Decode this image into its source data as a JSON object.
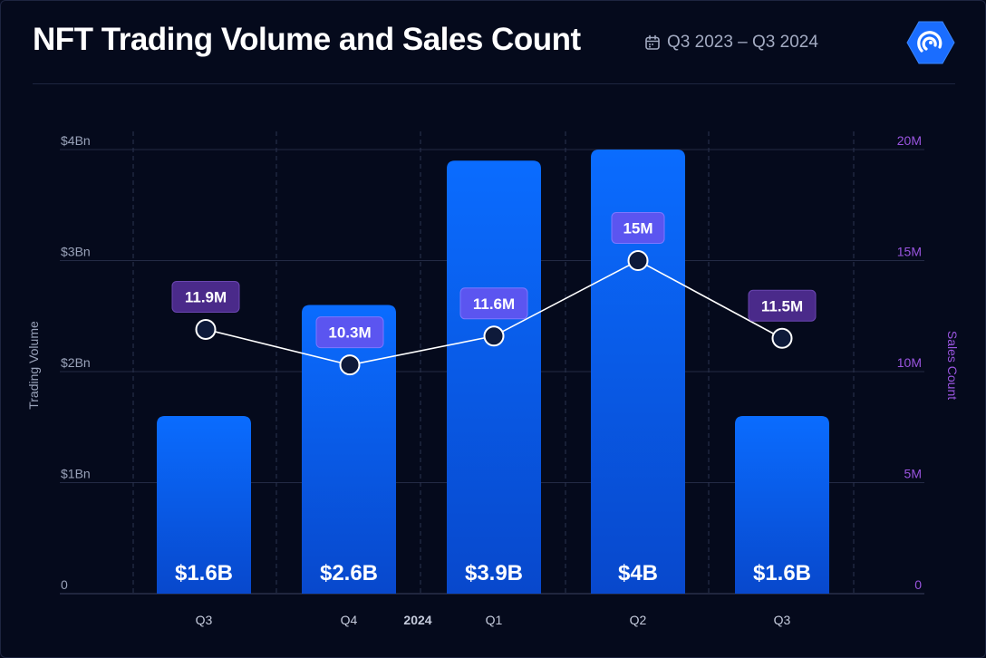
{
  "header": {
    "title": "NFT Trading Volume and Sales Count",
    "date_range": "Q3 2023 – Q3 2024"
  },
  "chart_data": {
    "type": "bar",
    "title": "NFT Trading Volume and Sales Count",
    "categories": [
      "Q3",
      "Q4",
      "Q1",
      "Q2",
      "Q3"
    ],
    "year_marker": {
      "label": "2024",
      "before_index": 2
    },
    "series": [
      {
        "name": "Trading Volume",
        "type": "bar",
        "axis": "left",
        "values": [
          1.6,
          2.6,
          3.9,
          4.0,
          1.6
        ],
        "labels": [
          "$1.6B",
          "$2.6B",
          "$3.9B",
          "$4B",
          "$1.6B"
        ]
      },
      {
        "name": "Sales Count",
        "type": "line",
        "axis": "right",
        "values": [
          11.9,
          10.3,
          11.6,
          15.0,
          11.5
        ],
        "labels": [
          "11.9M",
          "10.3M",
          "11.6M",
          "15M",
          "11.5M"
        ]
      }
    ],
    "ylabel": "Trading Volume",
    "ylabel_right": "Sales Count",
    "ylim": [
      0,
      4
    ],
    "ylim_right": [
      0,
      20
    ],
    "yticks": [
      0,
      1,
      2,
      3,
      4
    ],
    "ytick_labels": [
      "0",
      "$1Bn",
      "$2Bn",
      "$3Bn",
      "$4Bn"
    ],
    "yticks_right": [
      0,
      5,
      10,
      15,
      20
    ],
    "ytick_labels_right": [
      "0",
      "5M",
      "10M",
      "15M",
      "20M"
    ],
    "grid": true,
    "colors": {
      "bar_top": "#0a6cff",
      "bar_bottom": "#0848cc",
      "line": "#ffffff",
      "label_dark": "#4a2a8a",
      "label_light": "#5b55f0",
      "right_axis": "#9a55e0",
      "background": "#050a1c"
    }
  }
}
